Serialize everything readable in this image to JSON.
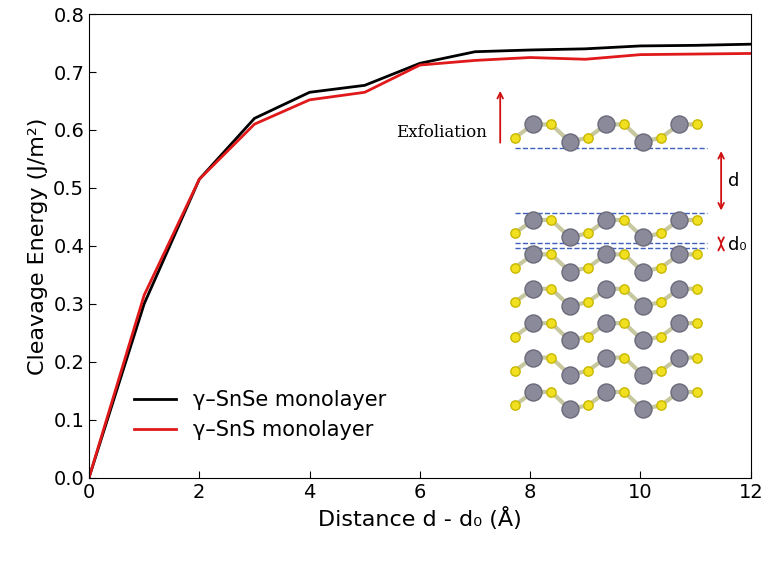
{
  "chart_data": {
    "type": "line",
    "x_label": "Distance d - d₀ (Å)",
    "y_label": "Cleavage Energy (J/m²)",
    "x": [
      0,
      1,
      2,
      3,
      4,
      5,
      6,
      7,
      8,
      9,
      10,
      11,
      12
    ],
    "series": [
      {
        "name": "γ–SnSe monolayer",
        "color": "#000000",
        "values": [
          0,
          0.3,
          0.515,
          0.62,
          0.665,
          0.677,
          0.715,
          0.735,
          0.738,
          0.74,
          0.745,
          0.746,
          0.748
        ]
      },
      {
        "name": "γ–SnS monolayer",
        "color": "#e0191b",
        "values": [
          0,
          0.315,
          0.515,
          0.61,
          0.652,
          0.665,
          0.712,
          0.72,
          0.725,
          0.722,
          0.73,
          0.731,
          0.732
        ]
      }
    ],
    "xlim": [
      0,
      12
    ],
    "ylim": [
      0,
      0.8
    ],
    "xticks": [
      0,
      2,
      4,
      6,
      8,
      10,
      12
    ],
    "yticks": [
      {
        "value": 0,
        "label": "0.0"
      },
      0.1,
      0.2,
      0.3,
      0.4,
      0.5,
      0.6,
      0.7,
      0.8
    ],
    "legend": "lower left",
    "annotations": [
      "Exfoliation",
      "d",
      "d₀"
    ]
  }
}
